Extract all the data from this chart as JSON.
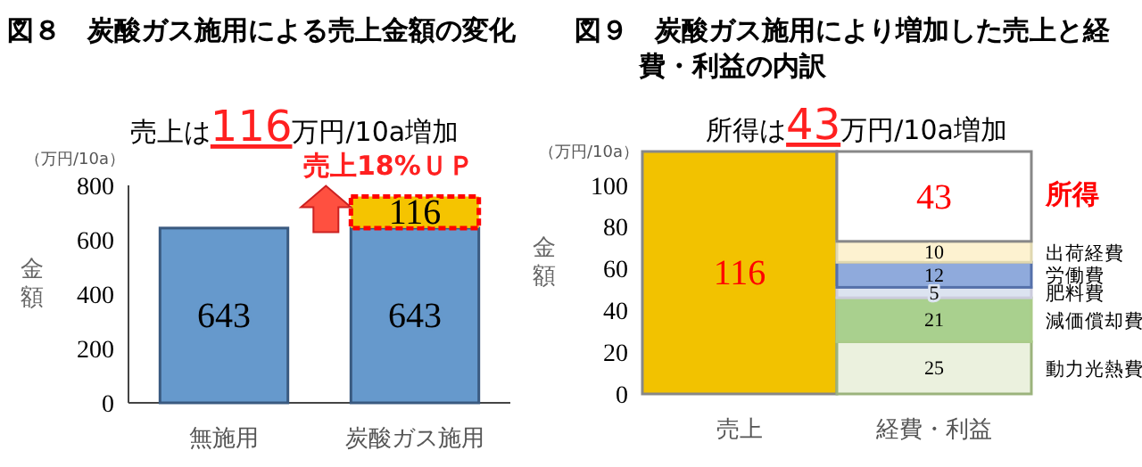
{
  "chart_data": [
    {
      "type": "bar",
      "stacked": true,
      "title": "図８　炭酸ガス施用による売上金額の変化",
      "subtitle": "売上は116万円/10a増加",
      "ylabel": "金額",
      "annotations": [
        "（万円/10a）",
        "売上18%ＵＰ"
      ],
      "categories": [
        "無施用",
        "炭酸ガス施用"
      ],
      "series": [
        {
          "color": "#6699cc",
          "values": [
            643,
            643
          ]
        },
        {
          "color": "#f5c400",
          "values": [
            null,
            116
          ]
        }
      ],
      "ylim": [
        0,
        800
      ],
      "yticks": [
        0,
        200,
        400,
        600,
        800
      ],
      "data_labels": true,
      "grid": false,
      "legend": false
    },
    {
      "type": "bar",
      "stacked": true,
      "title": "図９　炭酸ガス施用により増加した売上と経費・利益の内訳",
      "subtitle": "所得は43万円/10a増加",
      "ylabel": "金額",
      "annotations": [
        "（万円/10a）"
      ],
      "categories": [
        "売上",
        "経費・利益"
      ],
      "series": [
        {
          "color": "#f2c200",
          "values": [
            116,
            null
          ]
        },
        {
          "name": "動力光熱費",
          "color": "#ebf1de",
          "values": [
            null,
            25
          ]
        },
        {
          "name": "減価償却費",
          "color": "#a9d08e",
          "values": [
            null,
            21
          ]
        },
        {
          "name": "肥料費",
          "color": "#dce3f0",
          "values": [
            null,
            5
          ]
        },
        {
          "name": "労働費",
          "color": "#8faadc",
          "values": [
            null,
            12
          ]
        },
        {
          "name": "出荷経費",
          "color": "#fdf2d0",
          "values": [
            null,
            10
          ]
        },
        {
          "name": "所得",
          "color": "#ffffff",
          "values": [
            null,
            43
          ]
        }
      ],
      "ylim": [
        0,
        116
      ],
      "yticks": [
        0,
        20,
        40,
        60,
        80,
        100
      ],
      "data_labels": true,
      "grid": false,
      "legend": false
    }
  ]
}
